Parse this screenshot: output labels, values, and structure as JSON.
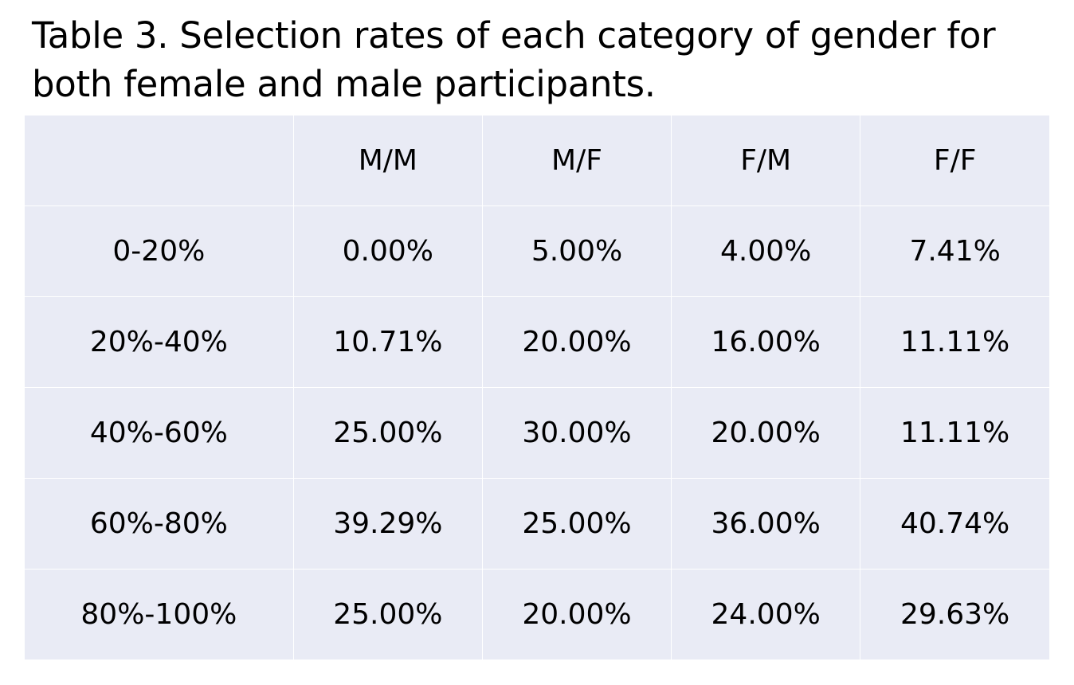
{
  "caption": "Table 3. Selection rates of each category of gender for both female and male participants.",
  "table": {
    "columns": [
      "",
      "M/M",
      "M/F",
      "F/M",
      "F/F"
    ],
    "rows": [
      {
        "label": "0-20%",
        "values": [
          "0.00%",
          "5.00%",
          "4.00%",
          "7.41%"
        ]
      },
      {
        "label": "20%-40%",
        "values": [
          "10.71%",
          "20.00%",
          "16.00%",
          "11.11%"
        ]
      },
      {
        "label": "40%-60%",
        "values": [
          "25.00%",
          "30.00%",
          "20.00%",
          "11.11%"
        ]
      },
      {
        "label": "60%-80%",
        "values": [
          "39.29%",
          "25.00%",
          "36.00%",
          "40.74%"
        ]
      },
      {
        "label": "80%-100%",
        "values": [
          "25.00%",
          "20.00%",
          "24.00%",
          "29.63%"
        ]
      }
    ]
  },
  "colors": {
    "cell_background": "#e9ebf5",
    "grid_lines": "#ffffff"
  }
}
